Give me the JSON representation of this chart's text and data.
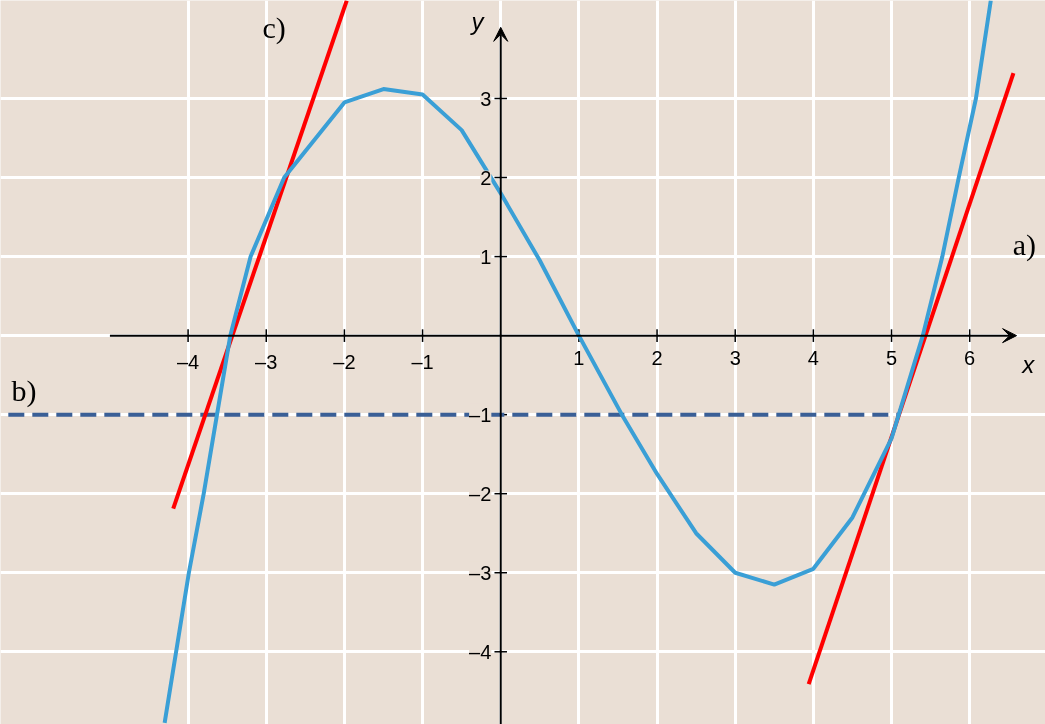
{
  "chart_data": {
    "type": "line",
    "xlabel": "x",
    "ylabel": "y",
    "xlim": [
      -6.4,
      6.97
    ],
    "ylim": [
      -4.92,
      4.24
    ],
    "xticks": [
      {
        "value": -4,
        "label": "–4"
      },
      {
        "value": -3,
        "label": "–3"
      },
      {
        "value": -2,
        "label": "–2"
      },
      {
        "value": -1,
        "label": "–1"
      },
      1,
      2,
      3,
      4,
      5,
      6
    ],
    "yticks": [
      {
        "value": -4,
        "label": "–4"
      },
      {
        "value": -3,
        "label": "–3"
      },
      {
        "value": -2,
        "label": "–2"
      },
      {
        "value": -1,
        "label": "–1"
      },
      1,
      2,
      3
    ],
    "grid": true,
    "series": [
      {
        "color": "#3a9fd6",
        "x": [
          -4.3,
          -3.99,
          -3.8,
          -3.63,
          -3.46,
          -3.2,
          -2.77,
          -2.0,
          -1.5,
          -1.0,
          -0.5,
          0,
          0.5,
          1,
          1.55,
          2,
          2.5,
          3,
          3.5,
          4,
          4.5,
          5,
          5.4,
          5.65,
          5.86,
          6.08,
          6.27
        ],
        "values": [
          -4.9,
          -3,
          -2,
          -1,
          0,
          1,
          2,
          2.95,
          3.12,
          3.05,
          2.6,
          1.8,
          0.95,
          0,
          -1,
          -1.75,
          -2.5,
          -3.0,
          -3.15,
          -2.95,
          -2.3,
          -1.3,
          0,
          1,
          2,
          3,
          4.24
        ]
      },
      {
        "color": "#ff0000",
        "x": [
          3.94,
          6.56
        ],
        "values": [
          -4.41,
          3.32
        ]
      },
      {
        "color": "#ff0000",
        "x": [
          -4.19,
          -1.97
        ],
        "values": [
          -2.19,
          4.24
        ]
      },
      {
        "color": "#3a5f96",
        "x": [
          -6.3,
          5.1
        ],
        "values": [
          -1,
          -1
        ],
        "line_style": "dashed"
      }
    ],
    "annotations": [
      "a)",
      "b)",
      "c)"
    ]
  }
}
